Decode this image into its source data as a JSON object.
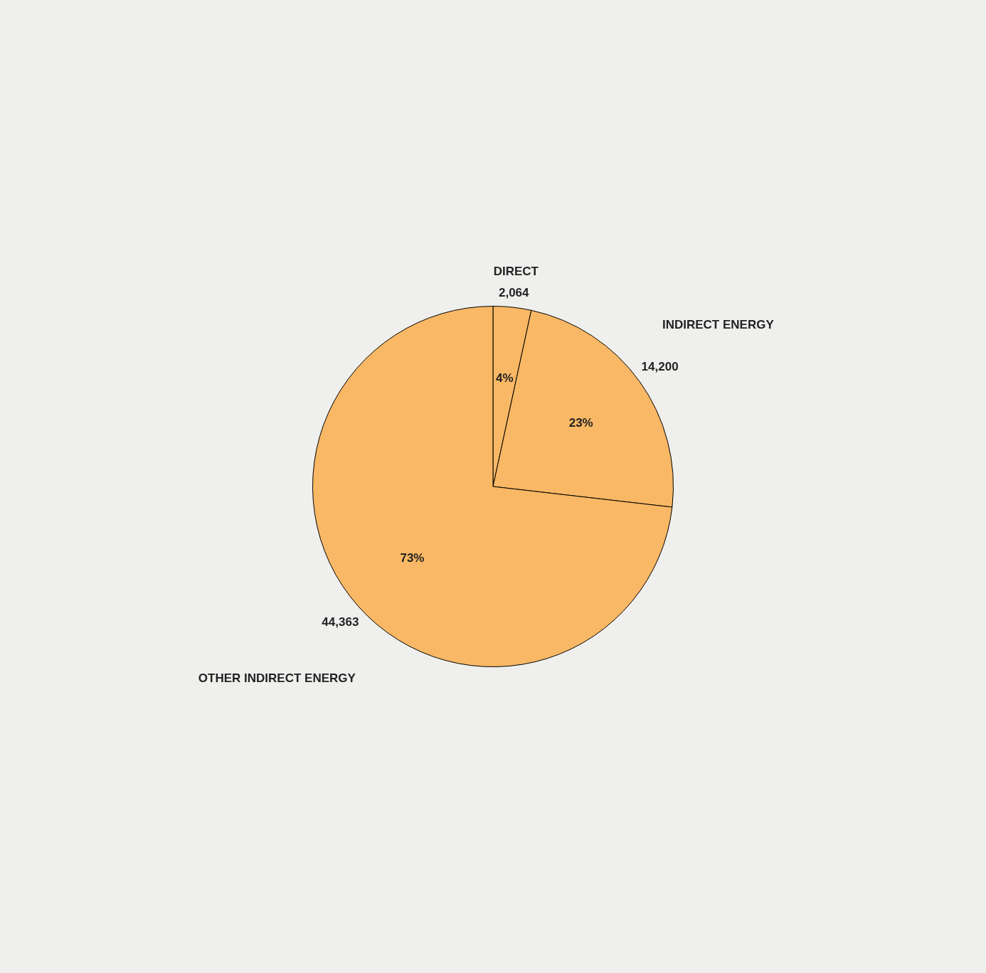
{
  "chart_data": {
    "type": "pie",
    "categories": [
      "DIRECT",
      "INDIRECT ENERGY",
      "OTHER INDIRECT ENERGY"
    ],
    "values": [
      2064,
      14200,
      44363
    ],
    "colors": [
      "#f9b865",
      "#f9b865",
      "#f9b865"
    ],
    "value_labels": [
      "2,064",
      "14,200",
      "44,363"
    ],
    "annotations": [
      "4%",
      "23%",
      "73%"
    ],
    "legend": false
  }
}
